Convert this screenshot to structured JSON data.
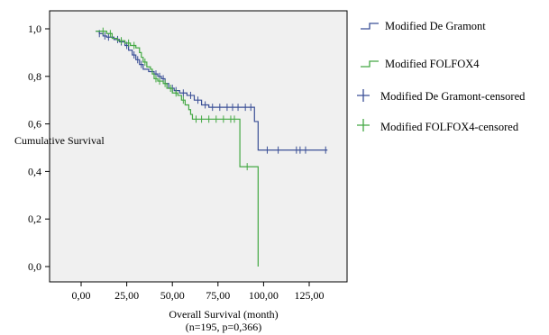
{
  "chart_data": {
    "type": "line",
    "title": "",
    "xlabel": "Overall Survival (month)",
    "xlabel2": "(n=195, p=0,366)",
    "ylabel": "Cumulative Survival",
    "xlim": [
      0,
      140
    ],
    "ylim": [
      0,
      1.0
    ],
    "xticks": [
      {
        "value": 0,
        "label": "0,00"
      },
      {
        "value": 25,
        "label": "25,00"
      },
      {
        "value": 50,
        "label": "50,00"
      },
      {
        "value": 75,
        "label": "75,00"
      },
      {
        "value": 100,
        "label": "100,00"
      },
      {
        "value": 125,
        "label": "125,00"
      }
    ],
    "yticks": [
      {
        "value": 0.0,
        "label": "0,0"
      },
      {
        "value": 0.2,
        "label": "0,2"
      },
      {
        "value": 0.4,
        "label": "0,4"
      },
      {
        "value": 0.6,
        "label": "0,6"
      },
      {
        "value": 0.8,
        "label": "0,8"
      },
      {
        "value": 1.0,
        "label": "1,0"
      }
    ],
    "grid": false,
    "legend_position": "right",
    "background": "#f0f0f0",
    "series": [
      {
        "name": "Modified De Gramont",
        "censored_name": "Modified De Gramont-censored",
        "color": "#3a4f96",
        "steps": [
          [
            8,
            0.99
          ],
          [
            10,
            0.98
          ],
          [
            12,
            0.97
          ],
          [
            14,
            0.965
          ],
          [
            18,
            0.955
          ],
          [
            21,
            0.945
          ],
          [
            24,
            0.93
          ],
          [
            26,
            0.91
          ],
          [
            28,
            0.89
          ],
          [
            30,
            0.87
          ],
          [
            32,
            0.85
          ],
          [
            34,
            0.83
          ],
          [
            37,
            0.82
          ],
          [
            40,
            0.81
          ],
          [
            42,
            0.8
          ],
          [
            44,
            0.79
          ],
          [
            46,
            0.77
          ],
          [
            48,
            0.75
          ],
          [
            51,
            0.74
          ],
          [
            54,
            0.73
          ],
          [
            58,
            0.72
          ],
          [
            62,
            0.7
          ],
          [
            66,
            0.68
          ],
          [
            70,
            0.67
          ],
          [
            95,
            0.61
          ],
          [
            97,
            0.49
          ],
          [
            135,
            0.49
          ]
        ],
        "censored": [
          10,
          13,
          15,
          20,
          22,
          25,
          29,
          31,
          33,
          41,
          43,
          45,
          50,
          52,
          56,
          60,
          64,
          68,
          72,
          76,
          80,
          83,
          86,
          90,
          93,
          102,
          108,
          118,
          120,
          123,
          134
        ]
      },
      {
        "name": "Modified FOLFOX4",
        "censored_name": "Modified FOLFOX4-censored",
        "color": "#43a843",
        "steps": [
          [
            8,
            0.99
          ],
          [
            14,
            0.98
          ],
          [
            17,
            0.96
          ],
          [
            20,
            0.95
          ],
          [
            24,
            0.94
          ],
          [
            27,
            0.93
          ],
          [
            30,
            0.92
          ],
          [
            32,
            0.9
          ],
          [
            33,
            0.88
          ],
          [
            34,
            0.86
          ],
          [
            36,
            0.84
          ],
          [
            38,
            0.83
          ],
          [
            39,
            0.81
          ],
          [
            40,
            0.79
          ],
          [
            42,
            0.78
          ],
          [
            45,
            0.77
          ],
          [
            47,
            0.75
          ],
          [
            50,
            0.73
          ],
          [
            53,
            0.72
          ],
          [
            55,
            0.7
          ],
          [
            57,
            0.68
          ],
          [
            59,
            0.66
          ],
          [
            60,
            0.64
          ],
          [
            61,
            0.62
          ],
          [
            87,
            0.42
          ],
          [
            97,
            0.0
          ]
        ],
        "censored": [
          12,
          16,
          22,
          26,
          29,
          35,
          41,
          43,
          46,
          49,
          52,
          56,
          63,
          66,
          70,
          74,
          78,
          82,
          84,
          91
        ]
      }
    ]
  }
}
